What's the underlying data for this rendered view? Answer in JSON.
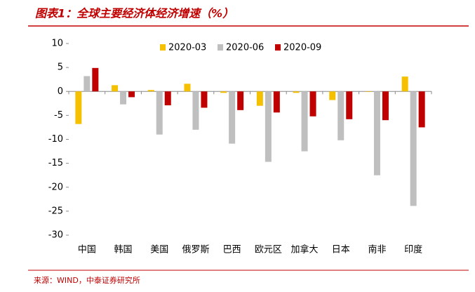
{
  "chart_data": {
    "type": "bar",
    "title": "图表1：全球主要经济体经济增速（%）",
    "source": "来源：WIND，中泰证券研究所",
    "categories": [
      "中国",
      "韩国",
      "美国",
      "俄罗斯",
      "巴西",
      "欧元区",
      "加拿大",
      "日本",
      "南非",
      "印度"
    ],
    "series": [
      {
        "name": "2020-03",
        "color": "#f5c000",
        "values": [
          -6.8,
          1.3,
          0.3,
          1.6,
          -0.3,
          -3.0,
          -0.3,
          -1.8,
          -0.1,
          3.1
        ]
      },
      {
        "name": "2020-06",
        "color": "#bfbfbf",
        "values": [
          3.2,
          -2.7,
          -9.0,
          -8.0,
          -10.9,
          -14.7,
          -12.5,
          -10.2,
          -17.5,
          -23.9
        ]
      },
      {
        "name": "2020-09",
        "color": "#c00000",
        "values": [
          4.9,
          -1.2,
          -2.9,
          -3.4,
          -3.9,
          -4.4,
          -5.2,
          -5.8,
          -6.0,
          -7.5
        ]
      }
    ],
    "ylim": [
      -30,
      10
    ],
    "yticks": [
      -30,
      -25,
      -20,
      -15,
      -10,
      -5,
      0,
      5,
      10
    ],
    "grid": false
  }
}
